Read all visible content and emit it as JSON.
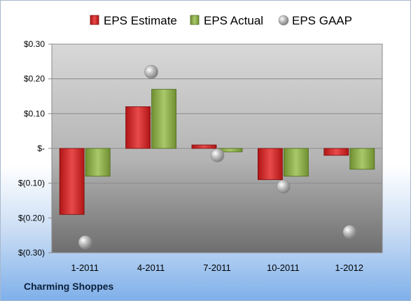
{
  "company": "Charming Shoppes",
  "chart_data": {
    "type": "bar",
    "categories": [
      "1-2011",
      "4-2011",
      "7-2011",
      "10-2011",
      "1-2012"
    ],
    "series": [
      {
        "name": "EPS Estimate",
        "type": "bar",
        "color": "#cc1f1f",
        "values": [
          -0.19,
          0.12,
          0.01,
          -0.09,
          -0.02
        ]
      },
      {
        "name": "EPS Actual",
        "type": "bar",
        "color": "#8fb04a",
        "values": [
          -0.08,
          0.17,
          -0.01,
          -0.08,
          -0.06
        ]
      },
      {
        "name": "EPS GAAP",
        "type": "scatter",
        "color": "#b8b8b8",
        "values": [
          -0.27,
          0.22,
          -0.02,
          -0.11,
          -0.24
        ]
      }
    ],
    "yticks": [
      {
        "value": 0.3,
        "label": "$0.30"
      },
      {
        "value": 0.2,
        "label": "$0.20"
      },
      {
        "value": 0.1,
        "label": "$0.10"
      },
      {
        "value": 0.0,
        "label": "$-"
      },
      {
        "value": -0.1,
        "label": "$(0.10)"
      },
      {
        "value": -0.2,
        "label": "$(0.20)"
      },
      {
        "value": -0.3,
        "label": "$(0.30)"
      }
    ],
    "ylim": [
      -0.3,
      0.3
    ],
    "legend_position": "top",
    "grid": true
  }
}
